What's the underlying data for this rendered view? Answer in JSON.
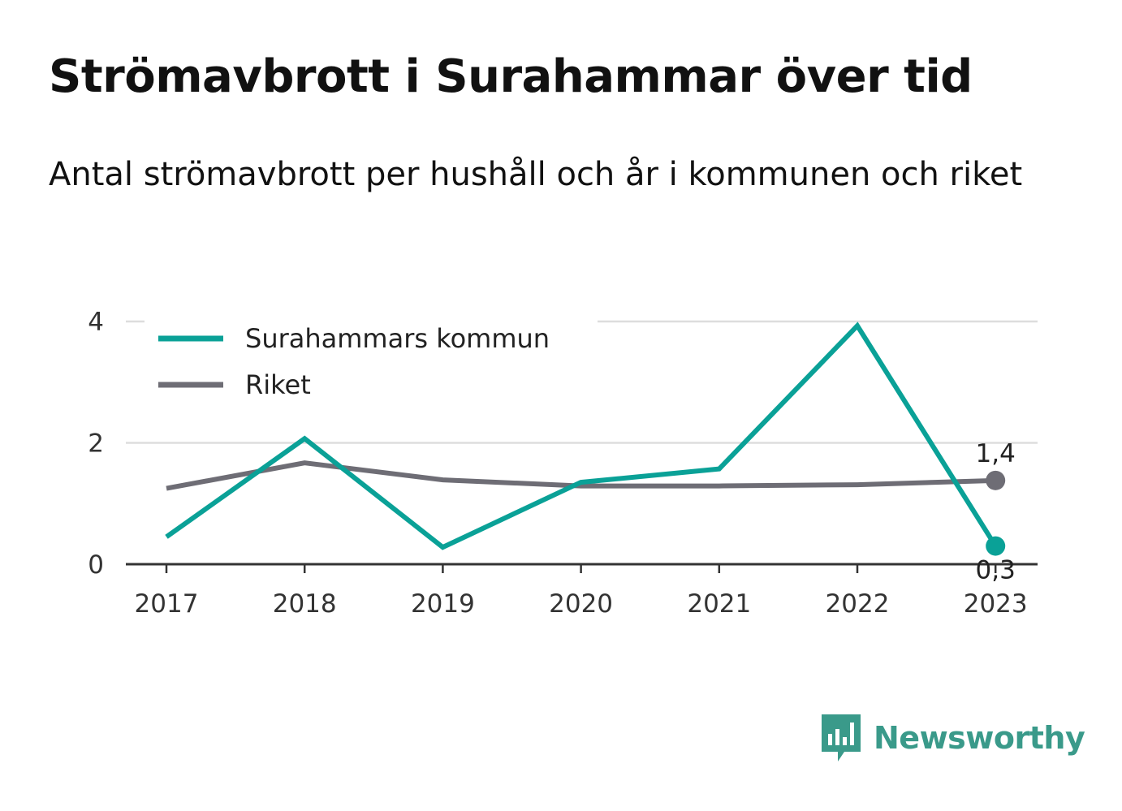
{
  "title": "Strömavbrott i Surahammar över tid",
  "subtitle": "Antal strömavbrott per hushåll och år i kommunen och riket",
  "brand": {
    "name": "Newsworthy",
    "icon": "newsworthy-logo-icon",
    "color": "#3a9a8a"
  },
  "chart_data": {
    "type": "line",
    "x": [
      "2017",
      "2018",
      "2019",
      "2020",
      "2021",
      "2022",
      "2023"
    ],
    "ylim": [
      0,
      4
    ],
    "yticks": [
      "0",
      "2",
      "4"
    ],
    "grid": true,
    "legend_position": "top-left",
    "series": [
      {
        "name": "Surahammars kommun",
        "color": "#0aa197",
        "values": [
          0.45,
          2.07,
          0.28,
          1.35,
          1.57,
          3.93,
          0.3
        ],
        "end_label": "0,3"
      },
      {
        "name": "Riket",
        "color": "#6e6d75",
        "values": [
          1.25,
          1.67,
          1.39,
          1.29,
          1.29,
          1.31,
          1.38
        ],
        "end_label": "1,4"
      }
    ]
  }
}
